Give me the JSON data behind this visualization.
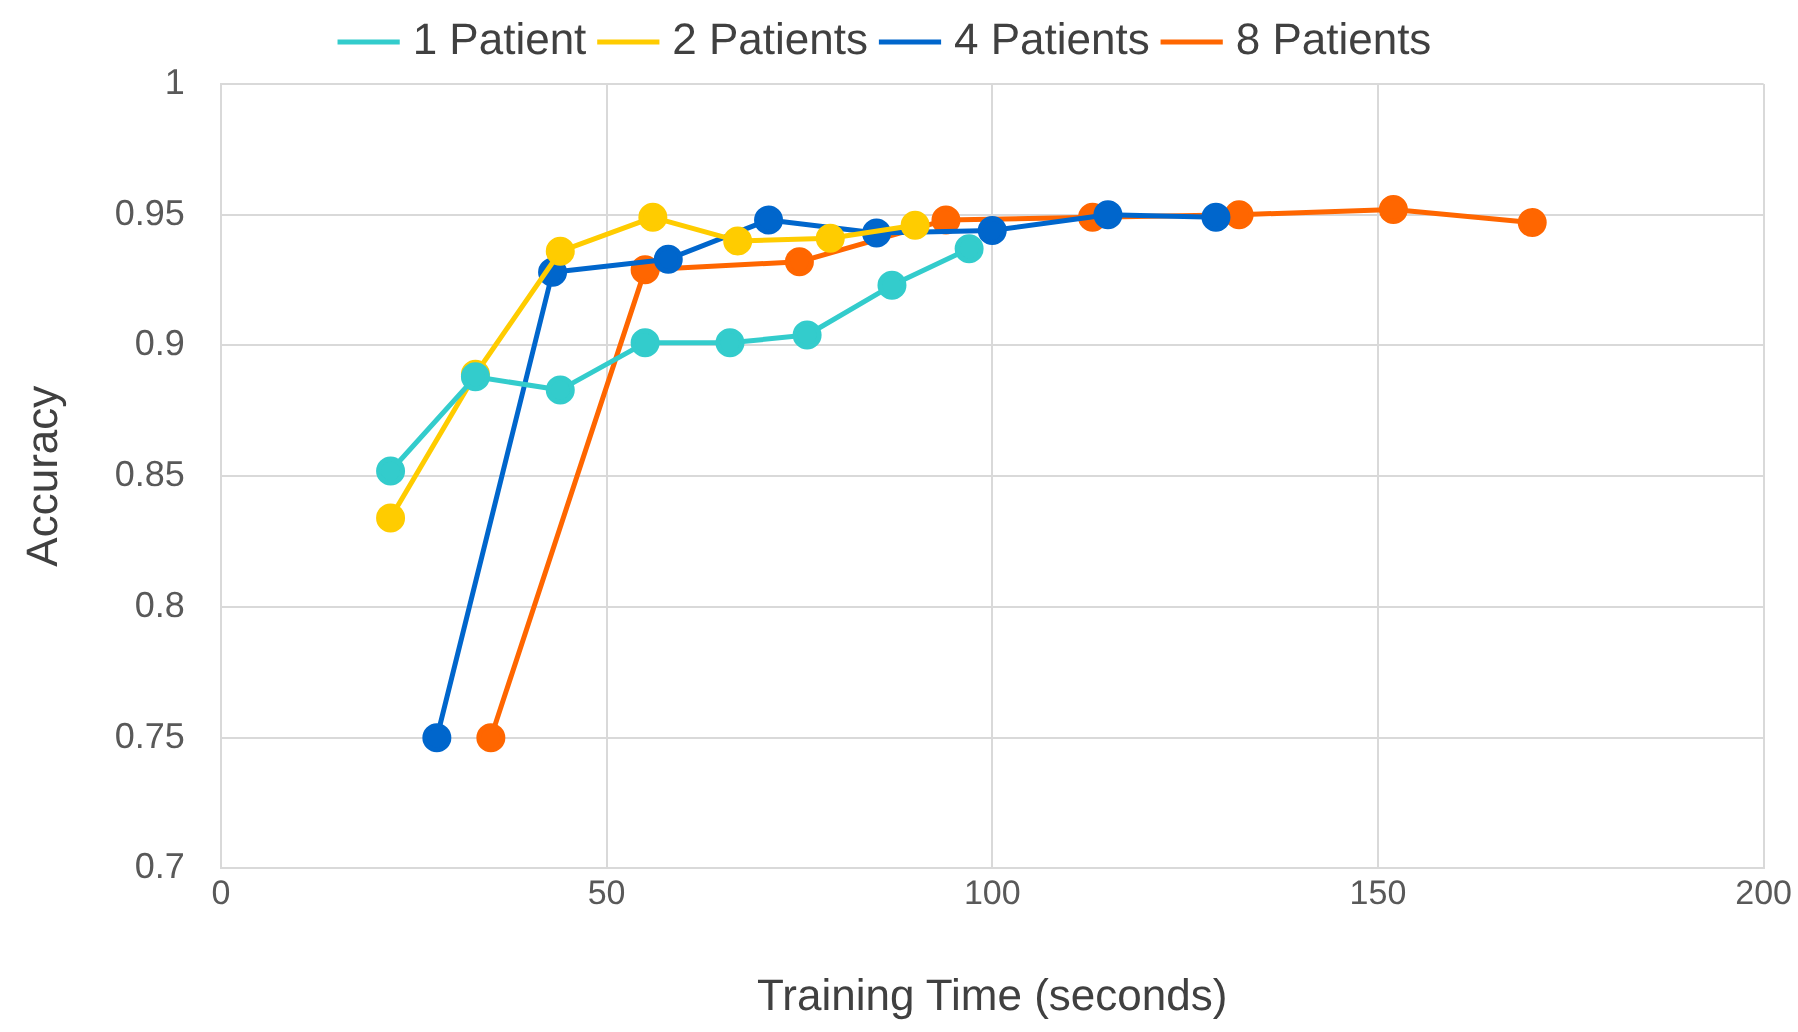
{
  "chart_data": {
    "type": "line",
    "xlabel": "Training Time (seconds)",
    "ylabel": "Accuracy",
    "xlim": [
      0,
      200
    ],
    "xticks": [
      0,
      50,
      100,
      150,
      200
    ],
    "ylim": [
      0.7,
      1
    ],
    "yticks": [
      0.7,
      0.75,
      0.8,
      0.85,
      0.9,
      0.95,
      1
    ],
    "grid": true,
    "legend": "top",
    "marker": "circle",
    "series": [
      {
        "name": "1 Patient",
        "color": "#33cccc",
        "x": [
          22,
          33,
          44,
          55,
          66,
          76,
          87,
          97
        ],
        "values": [
          0.852,
          0.888,
          0.883,
          0.901,
          0.901,
          0.904,
          0.923,
          0.937
        ]
      },
      {
        "name": "2 Patients",
        "color": "#ffcc00",
        "x": [
          22,
          33,
          44,
          56,
          67,
          79,
          90
        ],
        "values": [
          0.834,
          0.889,
          0.936,
          0.949,
          0.94,
          0.941,
          0.946
        ]
      },
      {
        "name": "4 Patients",
        "color": "#0066cc",
        "x": [
          28,
          43,
          58,
          71,
          85,
          100,
          115,
          129
        ],
        "values": [
          0.75,
          0.928,
          0.933,
          0.948,
          0.943,
          0.944,
          0.95,
          0.949
        ]
      },
      {
        "name": "8 Patients",
        "color": "#ff6600",
        "x": [
          35,
          55,
          75,
          94,
          113,
          132,
          152,
          170
        ],
        "values": [
          0.75,
          0.929,
          0.932,
          0.948,
          0.949,
          0.95,
          0.952,
          0.947
        ]
      }
    ]
  }
}
